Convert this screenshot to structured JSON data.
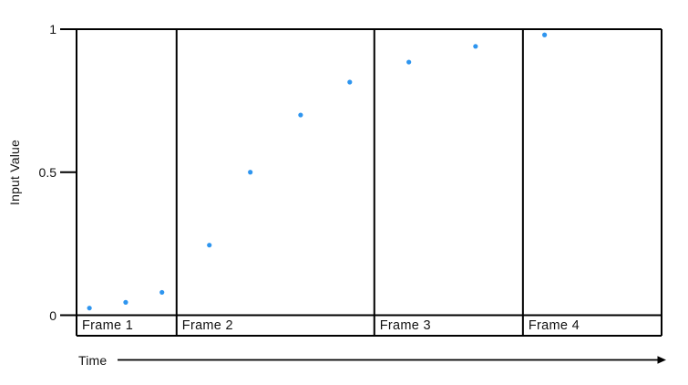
{
  "figure": {
    "y_axis_label": "Input Value",
    "x_axis_label": "Time"
  },
  "chart_data": {
    "type": "scatter",
    "title": "",
    "xlabel": "Time",
    "ylabel": "Input Value",
    "ylim": [
      0,
      1
    ],
    "grid": false,
    "legend": "none",
    "x_unit": "fraction_of_time_axis",
    "point_color": "#2E95EF",
    "line_color": "#000000",
    "yticks": [
      {
        "value": 0,
        "label": "0"
      },
      {
        "value": 0.5,
        "label": "0.5"
      },
      {
        "value": 1,
        "label": "1"
      }
    ],
    "frames": [
      {
        "label": "Frame 1",
        "x_start": 0.0,
        "x_end": 0.171
      },
      {
        "label": "Frame 2",
        "x_start": 0.171,
        "x_end": 0.509
      },
      {
        "label": "Frame 3",
        "x_start": 0.509,
        "x_end": 0.763
      },
      {
        "label": "Frame 4",
        "x_start": 0.763,
        "x_end": 1.0
      }
    ],
    "points": [
      {
        "x": 0.022,
        "y": 0.025
      },
      {
        "x": 0.084,
        "y": 0.045
      },
      {
        "x": 0.146,
        "y": 0.08
      },
      {
        "x": 0.227,
        "y": 0.245
      },
      {
        "x": 0.297,
        "y": 0.5
      },
      {
        "x": 0.383,
        "y": 0.7
      },
      {
        "x": 0.467,
        "y": 0.815
      },
      {
        "x": 0.568,
        "y": 0.885
      },
      {
        "x": 0.682,
        "y": 0.94
      },
      {
        "x": 0.8,
        "y": 0.98
      }
    ]
  }
}
